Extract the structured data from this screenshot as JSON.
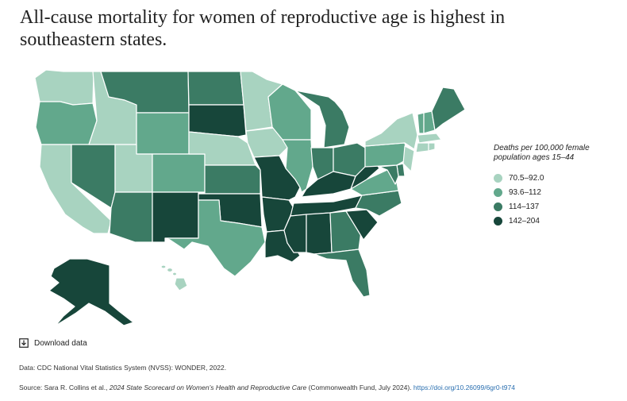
{
  "title": "All-cause mortality for women of reproductive age is highest in southeastern states.",
  "legend": {
    "title": "Deaths per 100,000 female population ages 15–44",
    "bins": [
      {
        "label": "70.5–92.0",
        "color": "#a8d3c0"
      },
      {
        "label": "93.6–112",
        "color": "#62a88c"
      },
      {
        "label": "114–137",
        "color": "#3b7b64"
      },
      {
        "label": "142–204",
        "color": "#17463a"
      }
    ]
  },
  "state_bins": {
    "WA": 0,
    "OR": 1,
    "CA": 0,
    "NV": 2,
    "ID": 0,
    "MT": 2,
    "WY": 1,
    "UT": 0,
    "AZ": 2,
    "CO": 1,
    "NM": 3,
    "ND": 2,
    "SD": 3,
    "NE": 0,
    "KS": 2,
    "OK": 3,
    "TX": 1,
    "MN": 0,
    "IA": 0,
    "MO": 3,
    "AR": 3,
    "LA": 3,
    "WI": 1,
    "IL": 1,
    "MI": 2,
    "IN": 2,
    "OH": 2,
    "KY": 3,
    "TN": 3,
    "MS": 3,
    "AL": 3,
    "GA": 2,
    "FL": 2,
    "SC": 3,
    "NC": 2,
    "VA": 1,
    "WV": 3,
    "PA": 1,
    "NY": 0,
    "VT": 1,
    "NH": 1,
    "ME": 2,
    "MA": 0,
    "CT": 0,
    "RI": 0,
    "NJ": 0,
    "DE": 2,
    "MD": 2,
    "AK": 3,
    "HI": 0
  },
  "download_label": "Download data",
  "data_note": "Data: CDC National Vital Statistics System (NVSS): WONDER, 2022.",
  "source": {
    "prefix": "Source: Sara R. Collins et al., ",
    "report": "2024 State Scorecard on Women’s Health and Reproductive Care",
    "suffix": " (Commonwealth Fund, July 2024). ",
    "link": "https://doi.org/10.26099/6gr0-t974"
  }
}
